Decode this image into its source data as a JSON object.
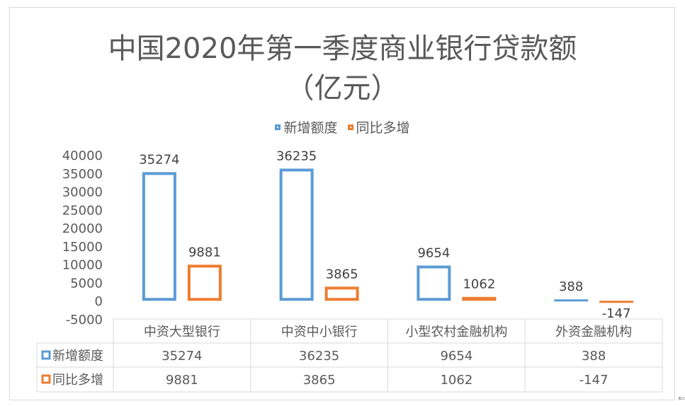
{
  "chart_data": {
    "type": "bar",
    "title": "中国2020年第一季度商业银行贷款额",
    "subtitle": "（亿元）",
    "categories": [
      "中资大型银行",
      "中资中小银行",
      "小型农村金融机构",
      "外资金融机构"
    ],
    "series": [
      {
        "name": "新增额度",
        "values": [
          35274,
          36235,
          9654,
          388
        ],
        "color": "#5b9bd5"
      },
      {
        "name": "同比多增",
        "values": [
          9881,
          3865,
          1062,
          -147
        ],
        "color": "#ed7d31"
      }
    ],
    "ylim": [
      -5000,
      40000
    ],
    "yticks": [
      "40000",
      "35000",
      "30000",
      "25000",
      "20000",
      "15000",
      "10000",
      "5000",
      "0",
      "-5000"
    ],
    "legend_position": "top",
    "data_table": true,
    "grid": false
  }
}
